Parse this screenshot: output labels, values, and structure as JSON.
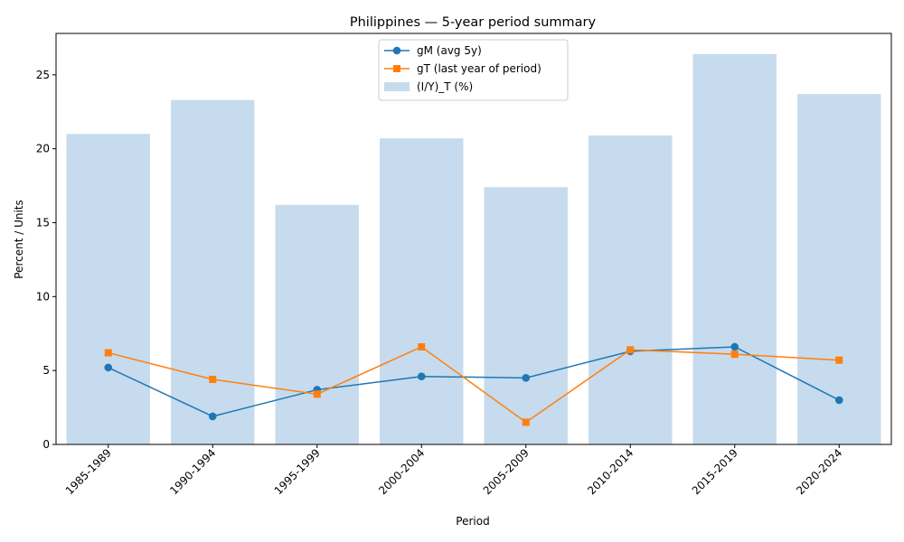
{
  "chart_data": {
    "type": "bar+line",
    "title": "Philippines — 5-year period summary",
    "xlabel": "Period",
    "ylabel": "Percent / Units",
    "categories": [
      "1985-1989",
      "1990-1994",
      "1995-1999",
      "2000-2004",
      "2005-2009",
      "2010-2014",
      "2015-2019",
      "2020-2024"
    ],
    "ylim": [
      0,
      27.8
    ],
    "yticks": [
      0,
      5,
      10,
      15,
      20,
      25
    ],
    "grid": false,
    "legend_position": "top-center",
    "series": [
      {
        "name": "gM (avg 5y)",
        "kind": "line",
        "marker": "circle",
        "color": "#1f77b4",
        "values": [
          5.2,
          1.9,
          3.7,
          4.6,
          4.5,
          6.3,
          6.6,
          3.0
        ]
      },
      {
        "name": "gT (last year of period)",
        "kind": "line",
        "marker": "square",
        "color": "#ff7f0e",
        "values": [
          6.2,
          4.4,
          3.4,
          6.6,
          1.5,
          6.4,
          6.1,
          5.7
        ]
      },
      {
        "name": "(I/Y)_T (%)",
        "kind": "bar",
        "color": "#c6dbed",
        "values": [
          21.0,
          23.3,
          16.2,
          20.7,
          17.4,
          20.9,
          26.4,
          23.7
        ]
      }
    ]
  }
}
